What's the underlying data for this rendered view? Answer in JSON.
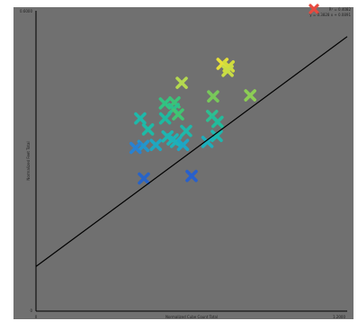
{
  "chart_data": {
    "type": "scatter",
    "title": "",
    "xlabel": "Normalized Cube Count Total",
    "ylabel": "Normalized Feet Total",
    "xlim": [
      0,
      1.2
    ],
    "ylim": [
      0,
      0.6
    ],
    "x_tick_labels": [
      "0",
      "1.2000"
    ],
    "y_tick_labels": [
      "0",
      "0.6000"
    ],
    "grid": false,
    "legend_position": "top-right",
    "legend": [
      {
        "marker": "x",
        "color": "#e84a3f",
        "lines": [
          "R² = 0.4082",
          "y = 0.3828 x + 0.0891"
        ]
      }
    ],
    "plot_background": "#707070",
    "page_background": "#ffffff",
    "trendline": {
      "slope": 0.3828,
      "intercept": 0.0891,
      "color": "#000000"
    },
    "marker_shape": "x",
    "points": [
      {
        "x": 0.719,
        "y": 0.494,
        "color": "#e6e03a"
      },
      {
        "x": 0.743,
        "y": 0.489,
        "color": "#d2dc3c"
      },
      {
        "x": 0.739,
        "y": 0.48,
        "color": "#c8dc46"
      },
      {
        "x": 0.562,
        "y": 0.456,
        "color": "#b4d850"
      },
      {
        "x": 0.683,
        "y": 0.429,
        "color": "#78c85a"
      },
      {
        "x": 0.826,
        "y": 0.431,
        "color": "#8ccd55"
      },
      {
        "x": 0.497,
        "y": 0.415,
        "color": "#32c382"
      },
      {
        "x": 0.534,
        "y": 0.417,
        "color": "#3cc378"
      },
      {
        "x": 0.531,
        "y": 0.404,
        "color": "#2dc08c"
      },
      {
        "x": 0.548,
        "y": 0.393,
        "color": "#41c573"
      },
      {
        "x": 0.498,
        "y": 0.385,
        "color": "#1eb9a0"
      },
      {
        "x": 0.402,
        "y": 0.385,
        "color": "#1eb9aa"
      },
      {
        "x": 0.679,
        "y": 0.39,
        "color": "#2dbe91"
      },
      {
        "x": 0.7,
        "y": 0.378,
        "color": "#23bb9b"
      },
      {
        "x": 0.432,
        "y": 0.363,
        "color": "#1ebaa6"
      },
      {
        "x": 0.579,
        "y": 0.36,
        "color": "#1eb8aa"
      },
      {
        "x": 0.697,
        "y": 0.35,
        "color": "#1eb7ae"
      },
      {
        "x": 0.507,
        "y": 0.349,
        "color": "#1eb6b0"
      },
      {
        "x": 0.527,
        "y": 0.343,
        "color": "#1eb4b4"
      },
      {
        "x": 0.54,
        "y": 0.338,
        "color": "#1eb0b8"
      },
      {
        "x": 0.661,
        "y": 0.338,
        "color": "#1eaebc"
      },
      {
        "x": 0.462,
        "y": 0.332,
        "color": "#1ea8c0"
      },
      {
        "x": 0.567,
        "y": 0.332,
        "color": "#1ea6c4"
      },
      {
        "x": 0.414,
        "y": 0.33,
        "color": "#2396cc"
      },
      {
        "x": 0.384,
        "y": 0.326,
        "color": "#2882d2"
      },
      {
        "x": 0.416,
        "y": 0.265,
        "color": "#2864c8"
      },
      {
        "x": 0.6,
        "y": 0.27,
        "color": "#2860cc"
      }
    ]
  }
}
